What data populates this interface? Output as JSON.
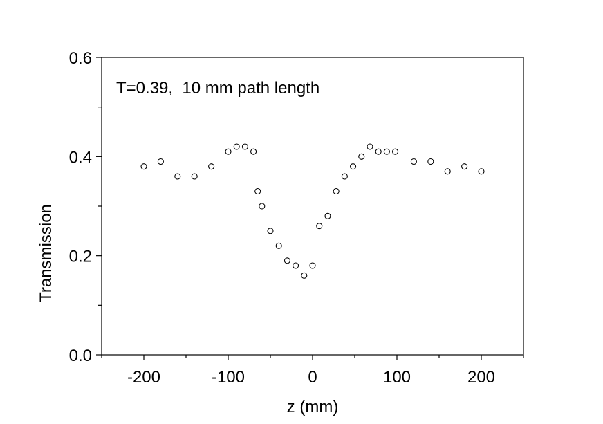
{
  "chart_data": {
    "type": "scatter",
    "title": "",
    "annotation": "T=0.39,  10 mm path length",
    "xlabel": "z (mm)",
    "ylabel": "Transmission",
    "xlim": [
      -250,
      250
    ],
    "ylim": [
      0.0,
      0.6
    ],
    "xticks": [
      -200,
      -100,
      0,
      100,
      200
    ],
    "xtick_labels": [
      "-200",
      "-100",
      "0",
      "100",
      "200"
    ],
    "yticks": [
      0.0,
      0.2,
      0.4,
      0.6
    ],
    "ytick_labels": [
      "0.0",
      "0.2",
      "0.4",
      "0.6"
    ],
    "grid": false,
    "marker": "open-circle",
    "series": [
      {
        "points": [
          {
            "x": -200,
            "y": 0.38
          },
          {
            "x": -180,
            "y": 0.39
          },
          {
            "x": -160,
            "y": 0.36
          },
          {
            "x": -140,
            "y": 0.36
          },
          {
            "x": -120,
            "y": 0.38
          },
          {
            "x": -100,
            "y": 0.41
          },
          {
            "x": -90,
            "y": 0.42
          },
          {
            "x": -80,
            "y": 0.42
          },
          {
            "x": -70,
            "y": 0.41
          },
          {
            "x": -65,
            "y": 0.33
          },
          {
            "x": -60,
            "y": 0.3
          },
          {
            "x": -50,
            "y": 0.25
          },
          {
            "x": -40,
            "y": 0.22
          },
          {
            "x": -30,
            "y": 0.19
          },
          {
            "x": -20,
            "y": 0.18
          },
          {
            "x": -10,
            "y": 0.16
          },
          {
            "x": 0,
            "y": 0.18
          },
          {
            "x": 8,
            "y": 0.26
          },
          {
            "x": 18,
            "y": 0.28
          },
          {
            "x": 28,
            "y": 0.33
          },
          {
            "x": 38,
            "y": 0.36
          },
          {
            "x": 48,
            "y": 0.38
          },
          {
            "x": 58,
            "y": 0.4
          },
          {
            "x": 68,
            "y": 0.42
          },
          {
            "x": 78,
            "y": 0.41
          },
          {
            "x": 88,
            "y": 0.41
          },
          {
            "x": 98,
            "y": 0.41
          },
          {
            "x": 120,
            "y": 0.39
          },
          {
            "x": 140,
            "y": 0.39
          },
          {
            "x": 160,
            "y": 0.37
          },
          {
            "x": 180,
            "y": 0.38
          },
          {
            "x": 200,
            "y": 0.37
          }
        ]
      }
    ]
  }
}
